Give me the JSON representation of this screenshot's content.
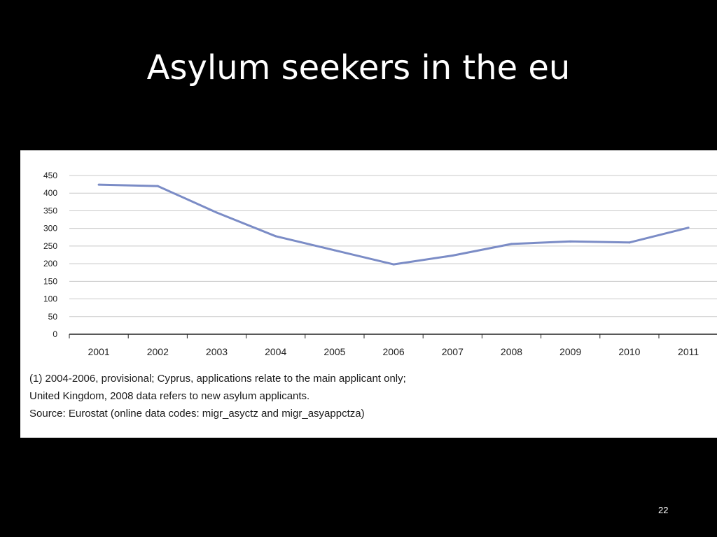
{
  "slide": {
    "title": "Asylum seekers in the eu",
    "page_number": "22"
  },
  "notes": [
    "(1) 2004-2006, provisional; Cyprus, applications relate to the main applicant only;",
    "United Kingdom, 2008 data refers to new asylum applicants.",
    "Source: Eurostat (online data codes: migr_asyctz and migr_asyappctza)"
  ],
  "colors": {
    "line": "#7b8cc6",
    "grid": "#c8c8c8",
    "axis": "#222222",
    "background": "#000000",
    "panel": "#ffffff"
  },
  "chart_data": {
    "type": "line",
    "title": "",
    "xlabel": "",
    "ylabel": "",
    "categories": [
      "2001",
      "2002",
      "2003",
      "2004",
      "2005",
      "2006",
      "2007",
      "2008",
      "2009",
      "2010",
      "2011"
    ],
    "values": [
      424,
      420,
      345,
      278,
      238,
      198,
      223,
      256,
      263,
      260,
      302
    ],
    "ylim": [
      0,
      450
    ],
    "yticks": [
      0,
      50,
      100,
      150,
      200,
      250,
      300,
      350,
      400,
      450
    ],
    "grid": true,
    "legend": "none"
  }
}
